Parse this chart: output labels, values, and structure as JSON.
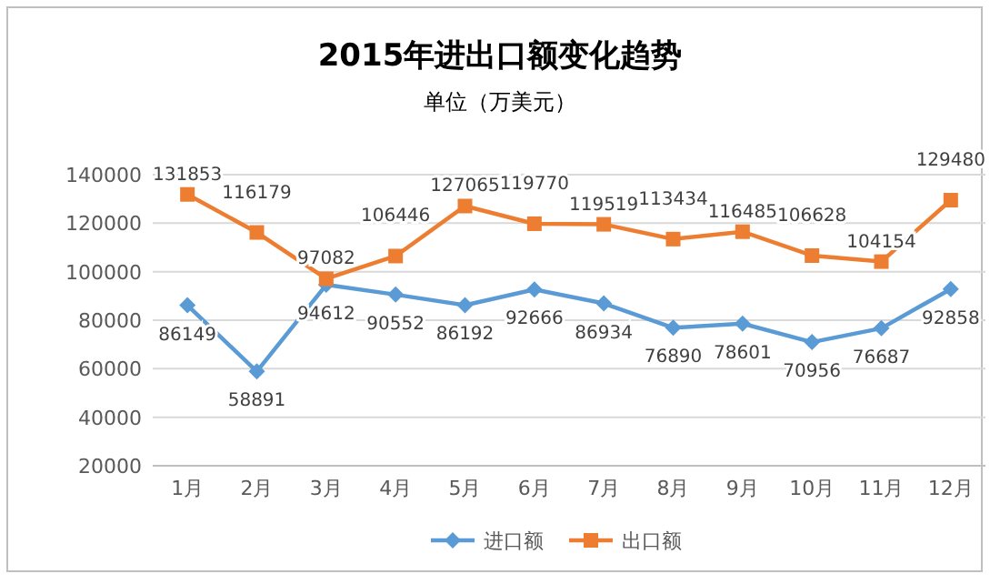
{
  "chart_data": {
    "type": "line",
    "title": "2015年进出口额变化趋势",
    "subtitle": "单位（万美元）",
    "categories": [
      "1月",
      "2月",
      "3月",
      "4月",
      "5月",
      "6月",
      "7月",
      "8月",
      "9月",
      "10月",
      "11月",
      "12月"
    ],
    "series": [
      {
        "name": "进口额",
        "color": "#5b9bd5",
        "marker": "diamond",
        "values": [
          86149,
          58891,
          94612,
          90552,
          86192,
          92666,
          86934,
          76890,
          78601,
          70956,
          76687,
          92858
        ]
      },
      {
        "name": "出口额",
        "color": "#ed7d31",
        "marker": "square",
        "values": [
          131853,
          116179,
          97082,
          106446,
          127065,
          119770,
          119519,
          113434,
          116485,
          106628,
          104154,
          129480
        ]
      }
    ],
    "data_labels": true,
    "ylim": [
      20000,
      140000
    ],
    "yticks": [
      20000,
      40000,
      60000,
      80000,
      100000,
      120000,
      140000
    ],
    "grid": "y",
    "legend": "bottom"
  }
}
